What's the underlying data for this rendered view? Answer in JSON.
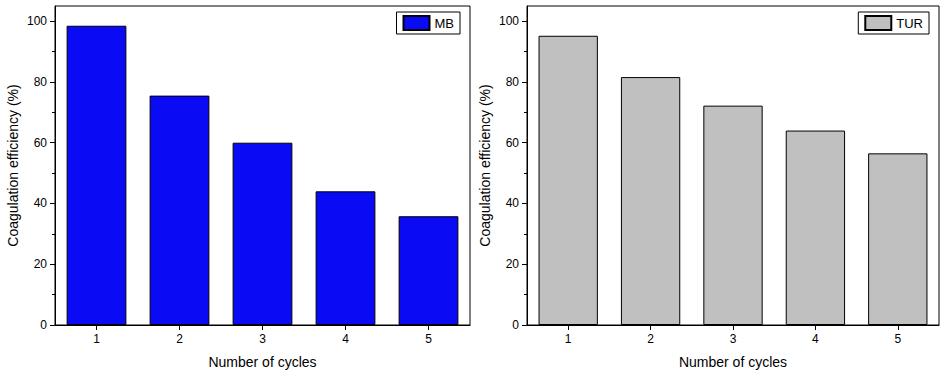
{
  "chart_data": [
    {
      "type": "bar",
      "categories": [
        "1",
        "2",
        "3",
        "4",
        "5"
      ],
      "series": [
        {
          "name": "MB",
          "color": "#0a0af5",
          "values": [
            98.5,
            75.5,
            60.0,
            44.0,
            35.8
          ]
        }
      ],
      "x_label": "Number of cycles",
      "y_label": "Coagulation efficiency (%)",
      "ylim": [
        0,
        105
      ],
      "yticks": [
        0,
        20,
        40,
        60,
        80,
        100
      ],
      "legend": "upper right"
    },
    {
      "type": "bar",
      "categories": [
        "1",
        "2",
        "3",
        "4",
        "5"
      ],
      "series": [
        {
          "name": "TUR",
          "color": "#c0c0c0",
          "values": [
            95.2,
            81.6,
            72.2,
            64.0,
            56.5
          ]
        }
      ],
      "x_label": "Number of cycles",
      "y_label": "Coagulation efficiency (%)",
      "ylim": [
        0,
        105
      ],
      "yticks": [
        0,
        20,
        40,
        60,
        80,
        100
      ],
      "legend": "upper right"
    }
  ]
}
